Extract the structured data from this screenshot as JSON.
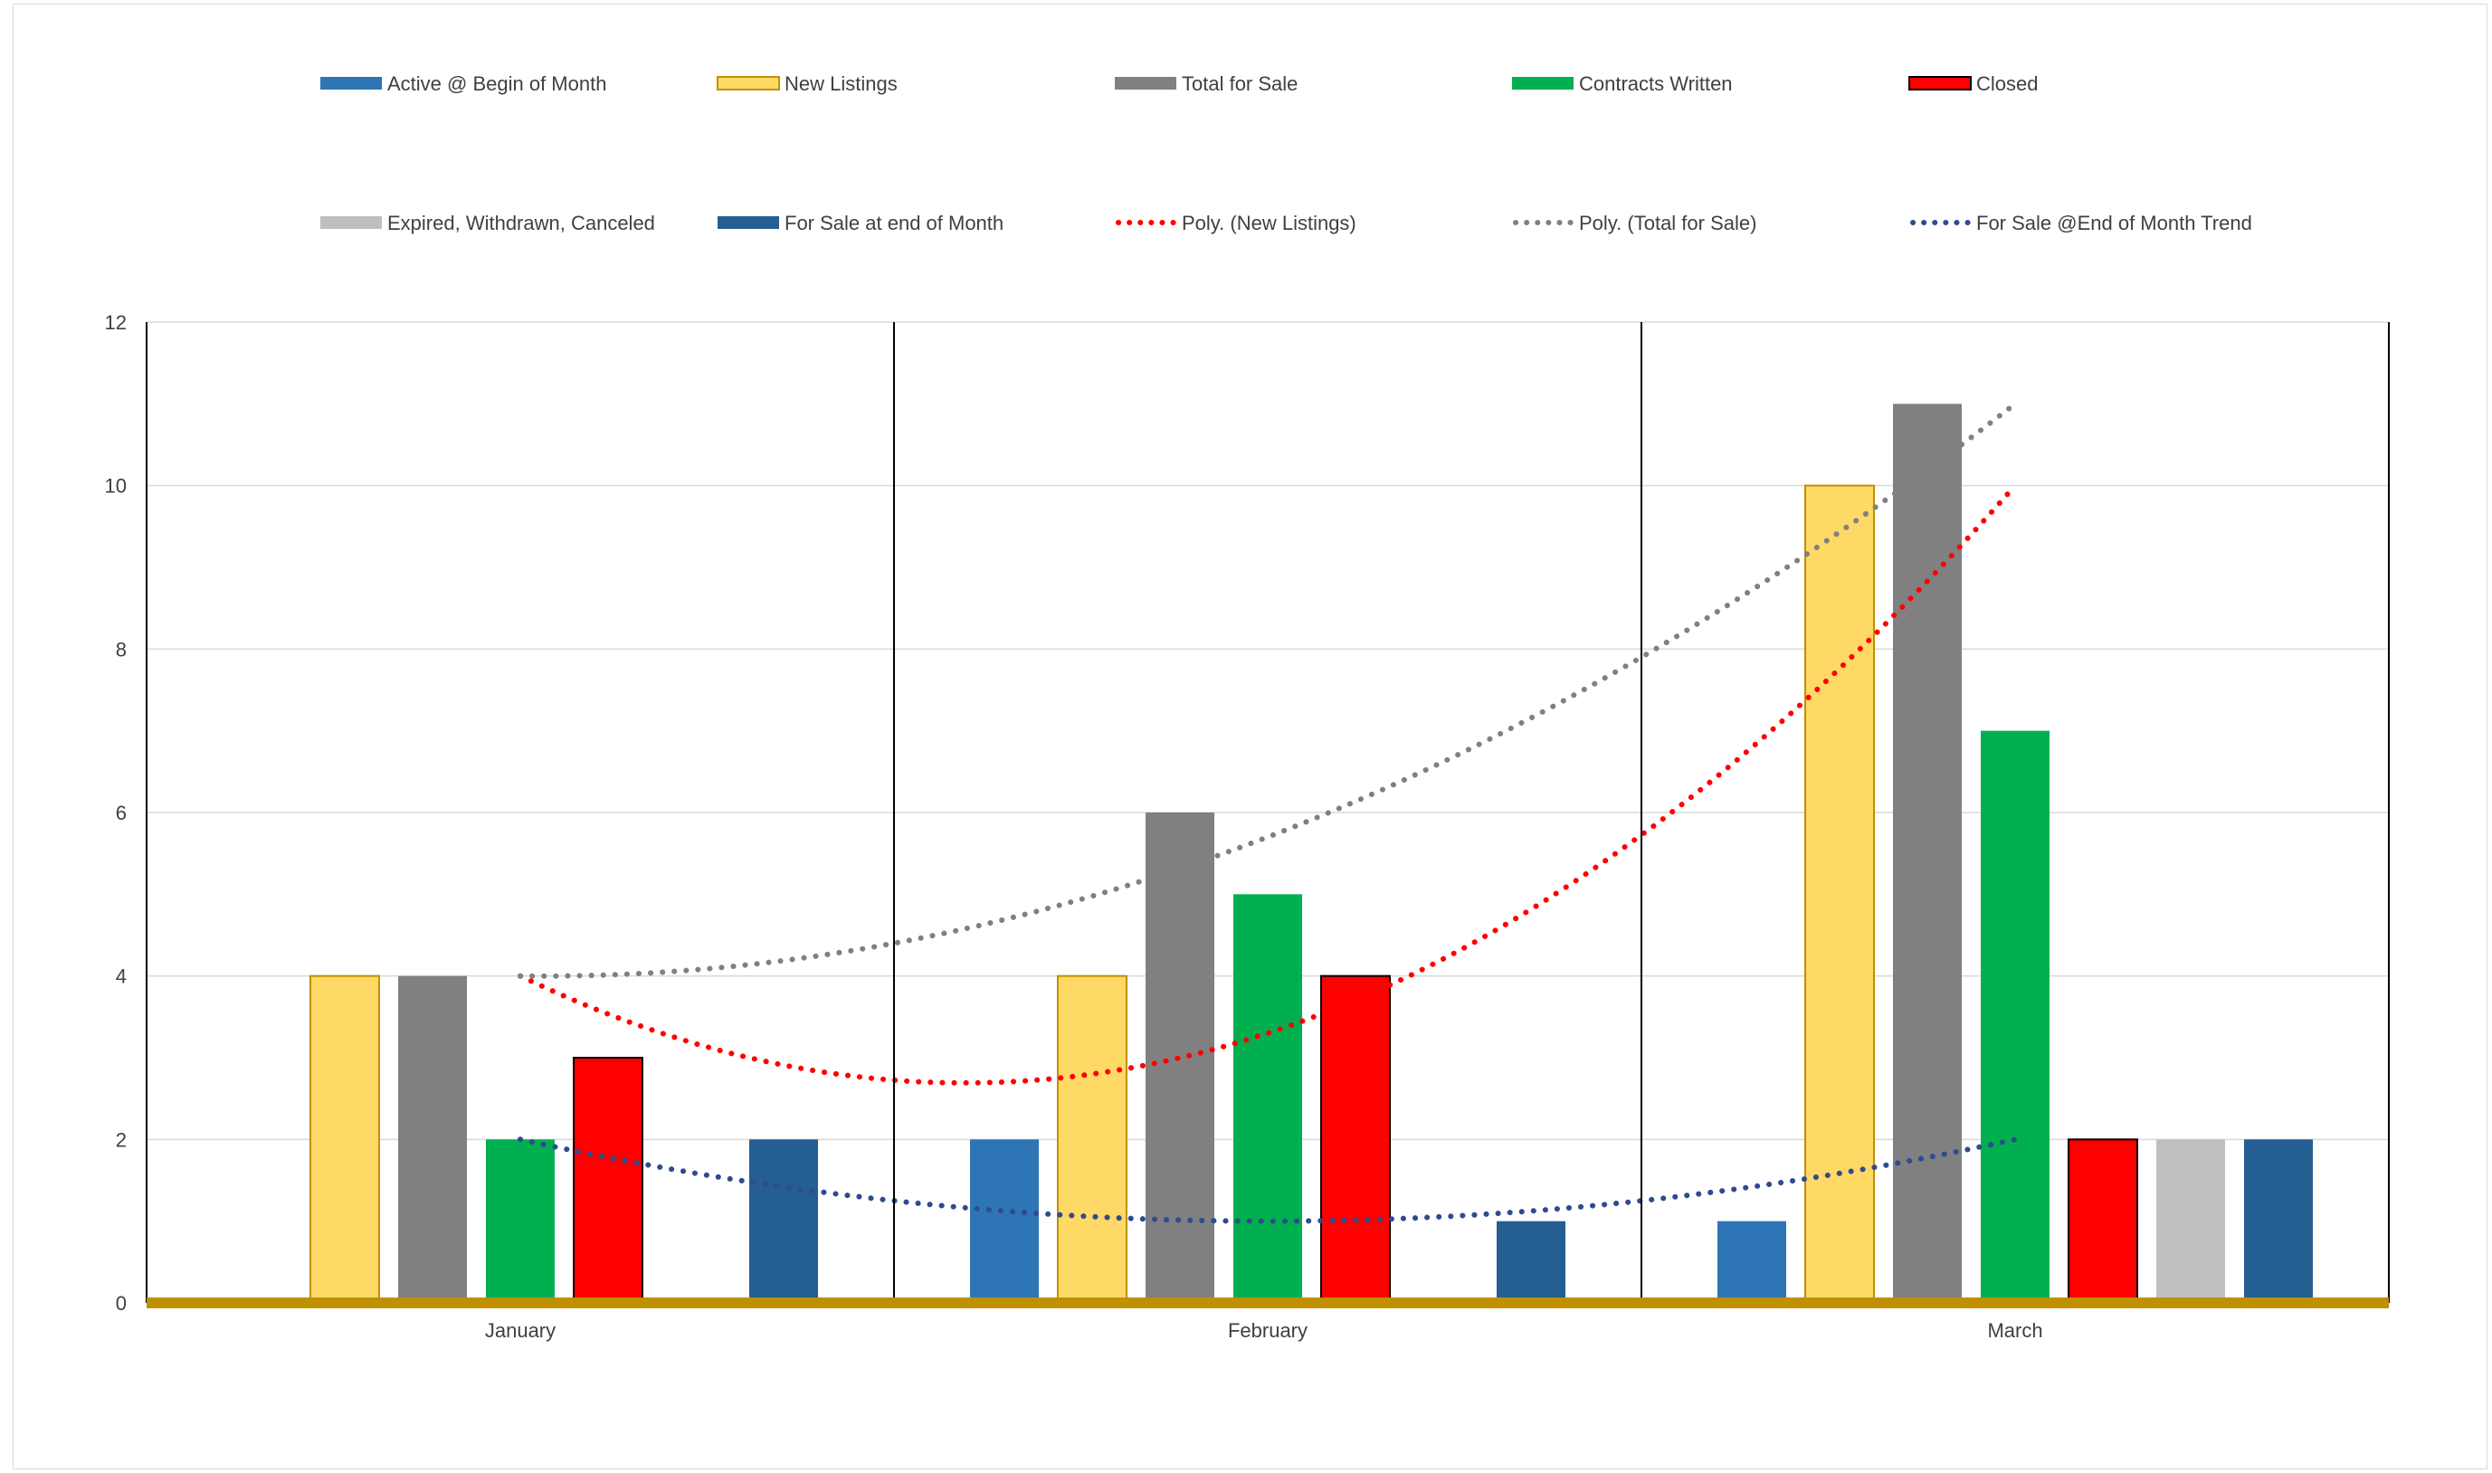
{
  "chart_data": {
    "type": "bar",
    "categories": [
      "January",
      "February",
      "March"
    ],
    "ylim": [
      0,
      12
    ],
    "yticks": [
      0,
      2,
      4,
      6,
      8,
      10,
      12
    ],
    "grid": true,
    "legend_position": "top",
    "series": [
      {
        "name": "Active @ Begin of Month",
        "values": [
          0,
          2,
          1
        ],
        "color": "#2E75B6",
        "stroke": "none"
      },
      {
        "name": "New Listings",
        "values": [
          4,
          4,
          10
        ],
        "color": "#FFD966",
        "stroke": "#BF9000"
      },
      {
        "name": "Total for Sale",
        "values": [
          4,
          6,
          11
        ],
        "color": "#808080",
        "stroke": "none"
      },
      {
        "name": "Contracts Written",
        "values": [
          2,
          5,
          7
        ],
        "color": "#00B050",
        "stroke": "none"
      },
      {
        "name": "Closed",
        "values": [
          3,
          4,
          2
        ],
        "color": "#FF0000",
        "stroke": "#000000"
      },
      {
        "name": "Expired, Withdrawn, Canceled",
        "values": [
          0,
          0,
          2
        ],
        "color": "#BFBFBF",
        "stroke": "none"
      },
      {
        "name": "For Sale at end of Month",
        "values": [
          2,
          1,
          2
        ],
        "color": "#255E91",
        "stroke": "none"
      }
    ],
    "trendlines": [
      {
        "name": "Poly. (New Listings)",
        "values": [
          4,
          3.3,
          10
        ],
        "color": "#FF0000",
        "type": "polynomial"
      },
      {
        "name": "Poly. (Total for Sale)",
        "values": [
          4,
          5.7,
          11
        ],
        "color": "#808080",
        "type": "polynomial"
      },
      {
        "name": "For Sale @End of Month Trend",
        "values": [
          2,
          1,
          2
        ],
        "color": "#2F4B8F",
        "type": "polynomial"
      }
    ],
    "axis_color": "#BF9000"
  }
}
